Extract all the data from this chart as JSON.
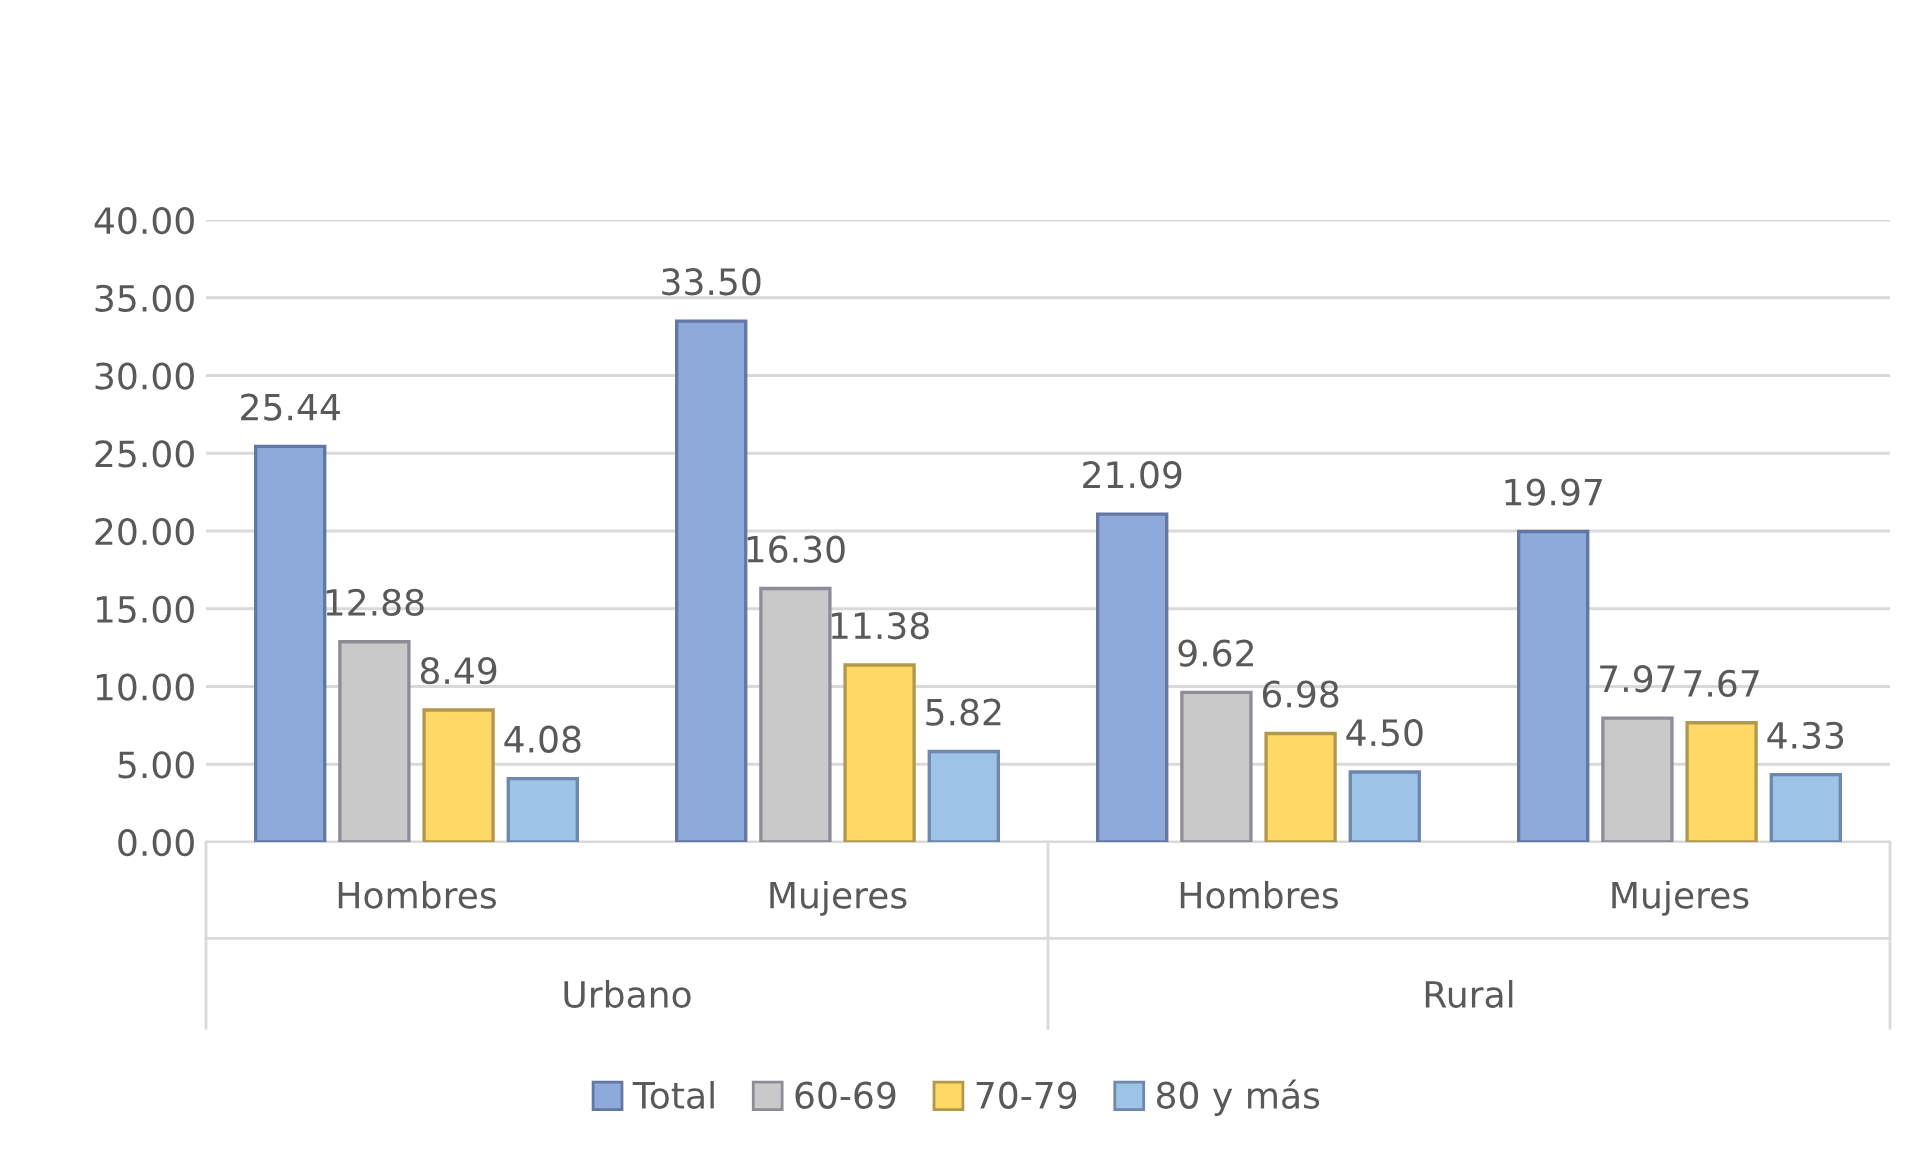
{
  "chart_data": {
    "type": "bar",
    "categories": [
      "Hombres",
      "Mujeres",
      "Hombres",
      "Mujeres"
    ],
    "annotations": [
      "Urbano",
      "Rural"
    ],
    "series": [
      {
        "name": "Total",
        "color": "#8eaadb",
        "values": [
          25.44,
          33.5,
          21.09,
          19.97
        ],
        "value_labels": [
          "25.44",
          "33.50",
          "21.09",
          "19.97"
        ]
      },
      {
        "name": "60-69",
        "color": "#c9c9c9",
        "values": [
          12.88,
          16.3,
          9.62,
          7.97
        ],
        "value_labels": [
          "12.88",
          "16.30",
          "9.62",
          "7.97"
        ]
      },
      {
        "name": "70-79",
        "color": "#ffd966",
        "values": [
          8.49,
          11.38,
          6.98,
          7.67
        ],
        "value_labels": [
          "8.49",
          "11.38",
          "6.98",
          "7.67"
        ]
      },
      {
        "name": "80 y más",
        "color": "#9dc3e6",
        "values": [
          4.08,
          5.82,
          4.5,
          4.33
        ],
        "value_labels": [
          "4.08",
          "5.82",
          "4.50",
          "4.33"
        ]
      }
    ],
    "ylim": [
      0,
      40
    ],
    "yticks": [
      {
        "value": 0,
        "label": "0.00"
      },
      {
        "value": 5,
        "label": "5.00"
      },
      {
        "value": 10,
        "label": "10.00"
      },
      {
        "value": 15,
        "label": "15.00"
      },
      {
        "value": 20,
        "label": "20.00"
      },
      {
        "value": 25,
        "label": "25.00"
      },
      {
        "value": 30,
        "label": "30.00"
      },
      {
        "value": 35,
        "label": "35.00"
      },
      {
        "value": 40,
        "label": "40.00"
      }
    ],
    "grid": "y",
    "legend": "bottom"
  }
}
